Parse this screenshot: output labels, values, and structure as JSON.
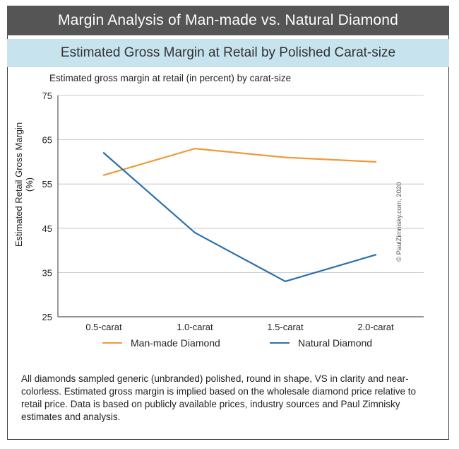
{
  "header": {
    "title": "Margin Analysis of Man-made vs. Natural Diamond",
    "subtitle": "Estimated Gross Margin at Retail by Polished Carat-size"
  },
  "chart_data": {
    "type": "line",
    "title": "Estimated gross margin at retail (in percent) by carat-size",
    "ylabel": "Estimated Retail Gross Margin (%)",
    "xlabel": "",
    "categories": [
      "0.5-carat",
      "1.0-carat",
      "1.5-carat",
      "2.0-carat"
    ],
    "ylim": [
      25,
      75
    ],
    "yticks": [
      25,
      35,
      45,
      55,
      65,
      75
    ],
    "grid": true,
    "legend": "bottom",
    "series": [
      {
        "name": "Man-made Diamond",
        "color": "#ef9a3a",
        "values": [
          57,
          63,
          61,
          60
        ]
      },
      {
        "name": "Natural Diamond",
        "color": "#2a6fae",
        "values": [
          62,
          44,
          33,
          39
        ]
      }
    ]
  },
  "copyright": "© PaulZimnisky.com, 2020",
  "note": "All diamonds sampled generic (unbranded) polished, round in shape, VS in clarity and near-colorless. Estimated gross margin is implied based on the wholesale diamond price relative to retail price. Data is based on publicly available prices, industry sources and Paul Zimnisky estimates and analysis."
}
